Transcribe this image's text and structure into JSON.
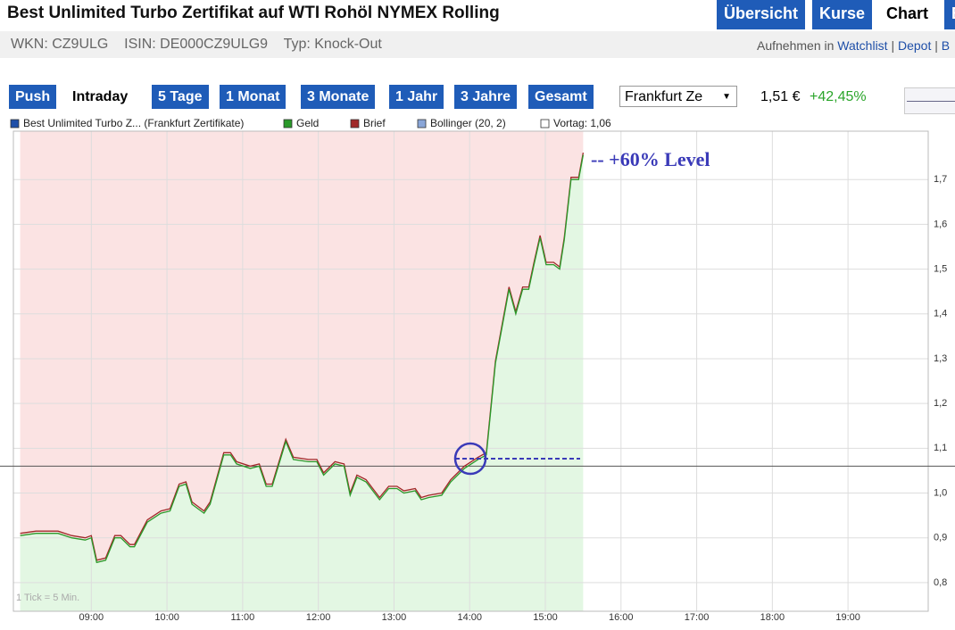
{
  "header": {
    "title": "Best Unlimited Turbo Zertifikat auf WTI Rohöl NYMEX Rolling",
    "tabs": [
      "Übersicht",
      "Kurse",
      "Chart"
    ],
    "info": [
      "WKN: CZ9ULG",
      "ISIN: DE000CZ9ULG9",
      "Typ: Knock-Out"
    ],
    "watchlist_prefix": "Aufnehmen in",
    "links": [
      "Watchlist",
      "Depot",
      "B"
    ]
  },
  "toolbar": {
    "periods": [
      "Push",
      "Intraday",
      "5 Tage",
      "1 Monat",
      "3 Monate",
      "1 Jahr",
      "3 Jahre",
      "Gesamt"
    ],
    "exchange": "Frankfurt Ze",
    "price": "1,51 €",
    "change": "+42,45%"
  },
  "chart_data": {
    "type": "line",
    "legend_extra": [
      {
        "name": "Best Unlimited Turbo Z... (Frankfurt Zertifikate)",
        "color": "#1f4fa8"
      },
      {
        "name": "Bollinger (20, 2)",
        "color": "#8aa6d8"
      }
    ],
    "reference_line": {
      "label": "Vortag: 1,06",
      "value": 1.06,
      "color": "#555555"
    },
    "annotation": "-- +60% Level",
    "note": "1 Tick = 5 Min.",
    "x": [
      8.06,
      8.27,
      8.56,
      8.74,
      8.92,
      9.0,
      9.07,
      9.19,
      9.31,
      9.39,
      9.51,
      9.57,
      9.74,
      9.92,
      10.04,
      10.16,
      10.25,
      10.33,
      10.49,
      10.57,
      10.75,
      10.84,
      10.92,
      11.1,
      11.22,
      11.31,
      11.39,
      11.57,
      11.67,
      11.87,
      11.98,
      12.07,
      12.22,
      12.34,
      12.42,
      12.51,
      12.63,
      12.81,
      12.93,
      13.04,
      13.13,
      13.28,
      13.36,
      13.46,
      13.63,
      13.75,
      13.93,
      14.11,
      14.22,
      14.34,
      14.52,
      14.61,
      14.7,
      14.78,
      14.85,
      14.93,
      15.01,
      15.11,
      15.19,
      15.25,
      15.34,
      15.44,
      15.5
    ],
    "series": [
      {
        "name": "Geld",
        "color": "#2a9a2a",
        "values": [
          0.905,
          0.91,
          0.91,
          0.9,
          0.895,
          0.9,
          0.845,
          0.85,
          0.9,
          0.9,
          0.88,
          0.88,
          0.935,
          0.955,
          0.96,
          1.015,
          1.02,
          0.975,
          0.955,
          0.975,
          1.085,
          1.085,
          1.065,
          1.055,
          1.06,
          1.015,
          1.015,
          1.115,
          1.075,
          1.07,
          1.07,
          1.04,
          1.065,
          1.06,
          0.995,
          1.035,
          1.025,
          0.985,
          1.01,
          1.01,
          1.0,
          1.005,
          0.985,
          0.99,
          0.995,
          1.025,
          1.055,
          1.075,
          1.085,
          1.29,
          1.455,
          1.4,
          1.455,
          1.455,
          1.51,
          1.57,
          1.51,
          1.51,
          1.5,
          1.565,
          1.7,
          1.7,
          1.755
        ]
      },
      {
        "name": "Brief",
        "color": "#a02828",
        "values": [
          0.91,
          0.915,
          0.915,
          0.905,
          0.9,
          0.905,
          0.85,
          0.855,
          0.905,
          0.905,
          0.885,
          0.885,
          0.94,
          0.96,
          0.965,
          1.02,
          1.025,
          0.98,
          0.96,
          0.98,
          1.09,
          1.09,
          1.07,
          1.06,
          1.065,
          1.02,
          1.02,
          1.12,
          1.08,
          1.075,
          1.075,
          1.045,
          1.07,
          1.065,
          1.0,
          1.04,
          1.03,
          0.99,
          1.015,
          1.015,
          1.005,
          1.01,
          0.99,
          0.995,
          1.0,
          1.03,
          1.06,
          1.08,
          1.09,
          1.295,
          1.46,
          1.405,
          1.46,
          1.46,
          1.515,
          1.575,
          1.515,
          1.515,
          1.505,
          1.57,
          1.705,
          1.705,
          1.76
        ]
      }
    ],
    "xlim": [
      7.97,
      20.06
    ],
    "xticks": [
      {
        "value": 9,
        "label": "09:00"
      },
      {
        "value": 10,
        "label": "10:00"
      },
      {
        "value": 11,
        "label": "11:00"
      },
      {
        "value": 12,
        "label": "12:00"
      },
      {
        "value": 13,
        "label": "13:00"
      },
      {
        "value": 14,
        "label": "14:00"
      },
      {
        "value": 15,
        "label": "15:00"
      },
      {
        "value": 16,
        "label": "16:00"
      },
      {
        "value": 17,
        "label": "17:00"
      },
      {
        "value": 18,
        "label": "18:00"
      },
      {
        "value": 19,
        "label": "19:00"
      }
    ],
    "ylim": [
      0.736,
      1.808
    ],
    "yticks": [
      {
        "value": 0.8,
        "label": "0,8"
      },
      {
        "value": 0.9,
        "label": "0,9"
      },
      {
        "value": 1.0,
        "label": "1,0"
      },
      {
        "value": 1.1,
        "label": "1,1"
      },
      {
        "value": 1.2,
        "label": "1,2"
      },
      {
        "value": 1.3,
        "label": "1,3"
      },
      {
        "value": 1.4,
        "label": "1,4"
      },
      {
        "value": 1.5,
        "label": "1,5"
      },
      {
        "value": 1.6,
        "label": "1,6"
      },
      {
        "value": 1.7,
        "label": "1,7"
      }
    ],
    "grid": true,
    "above_fill": "#fbe3e3",
    "below_fill": "#e3f7e3"
  }
}
